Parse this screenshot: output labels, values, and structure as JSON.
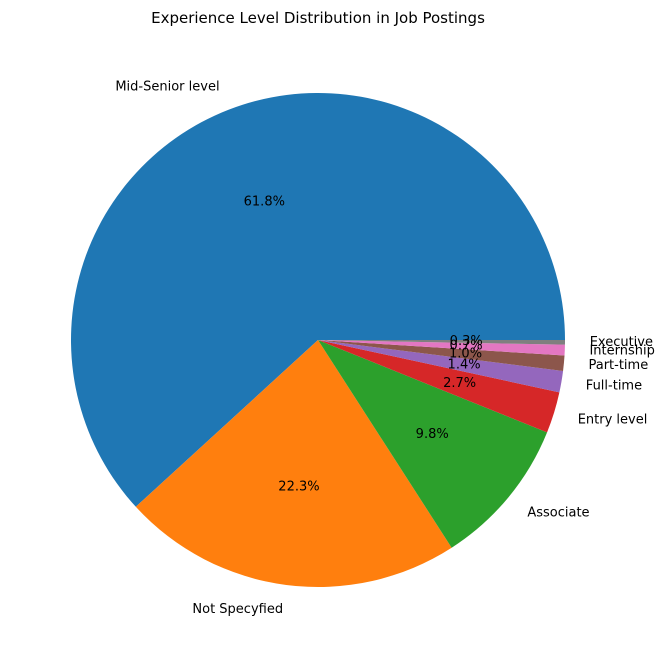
{
  "chart_data": {
    "type": "pie",
    "title": "Experience Level Distribution in Job Postings",
    "categories": [
      "Mid-Senior level",
      "Not Specyfied",
      "Associate",
      "Entry level",
      "Full-time",
      "Part-time",
      "Internship",
      "Executive"
    ],
    "values": [
      61.8,
      22.3,
      9.8,
      2.7,
      1.4,
      1.0,
      0.7,
      0.3
    ],
    "percent_labels": [
      "61.8%",
      "22.3%",
      "9.8%",
      "2.7%",
      "1.4%",
      "1.0%",
      "0.7%",
      "0.3%"
    ],
    "colors": [
      "#1f77b4",
      "#ff7f0e",
      "#2ca02c",
      "#d62728",
      "#9467bd",
      "#8c564b",
      "#e377c2",
      "#7f7f7f"
    ],
    "start_angle_deg": 0,
    "direction": "counterclockwise"
  }
}
